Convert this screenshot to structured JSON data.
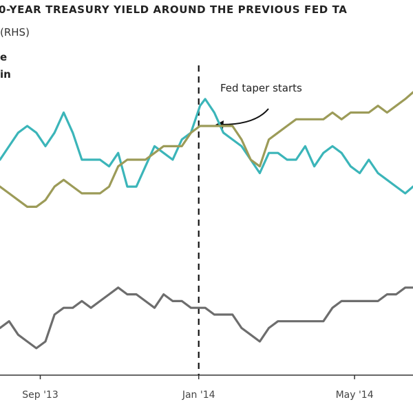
{
  "chart_data": {
    "type": "line",
    "title": "0-YEAR TREASURY YIELD AROUND THE PREVIOUS FED TA",
    "legend_fragments": [
      "(RHS)",
      "e",
      "in"
    ],
    "x_ticks": [
      "Sep '13",
      "Jan '14",
      "May '14"
    ],
    "annotation": "Fed taper starts",
    "event_date": "2014-01-01",
    "x_range": [
      "2013-08-01",
      "2014-06-15"
    ],
    "grid": false,
    "series": [
      {
        "color": "#3bb5b9",
        "points": [
          [
            "2013-08-01",
            0.62
          ],
          [
            "2013-08-08",
            0.64
          ],
          [
            "2013-08-15",
            0.66
          ],
          [
            "2013-08-22",
            0.67
          ],
          [
            "2013-08-29",
            0.66
          ],
          [
            "2013-09-05",
            0.64
          ],
          [
            "2013-09-12",
            0.66
          ],
          [
            "2013-09-19",
            0.69
          ],
          [
            "2013-09-26",
            0.66
          ],
          [
            "2013-10-03",
            0.62
          ],
          [
            "2013-10-10",
            0.62
          ],
          [
            "2013-10-17",
            0.62
          ],
          [
            "2013-10-24",
            0.61
          ],
          [
            "2013-10-31",
            0.63
          ],
          [
            "2013-11-07",
            0.58
          ],
          [
            "2013-11-14",
            0.58
          ],
          [
            "2013-11-21",
            0.61
          ],
          [
            "2013-11-28",
            0.64
          ],
          [
            "2013-12-05",
            0.63
          ],
          [
            "2013-12-12",
            0.62
          ],
          [
            "2013-12-19",
            0.65
          ],
          [
            "2013-12-26",
            0.66
          ],
          [
            "2014-01-02",
            0.7
          ],
          [
            "2014-01-06",
            0.71
          ],
          [
            "2014-01-13",
            0.69
          ],
          [
            "2014-01-20",
            0.66
          ],
          [
            "2014-01-27",
            0.65
          ],
          [
            "2014-02-03",
            0.64
          ],
          [
            "2014-02-10",
            0.62
          ],
          [
            "2014-02-17",
            0.6
          ],
          [
            "2014-02-24",
            0.63
          ],
          [
            "2014-03-03",
            0.63
          ],
          [
            "2014-03-10",
            0.62
          ],
          [
            "2014-03-17",
            0.62
          ],
          [
            "2014-03-24",
            0.64
          ],
          [
            "2014-03-31",
            0.61
          ],
          [
            "2014-04-07",
            0.63
          ],
          [
            "2014-04-14",
            0.64
          ],
          [
            "2014-04-21",
            0.63
          ],
          [
            "2014-04-28",
            0.61
          ],
          [
            "2014-05-05",
            0.6
          ],
          [
            "2014-05-12",
            0.62
          ],
          [
            "2014-05-19",
            0.6
          ],
          [
            "2014-05-26",
            0.59
          ],
          [
            "2014-06-02",
            0.58
          ],
          [
            "2014-06-09",
            0.57
          ],
          [
            "2014-06-15",
            0.58
          ]
        ]
      },
      {
        "color": "#9c9b58",
        "points": [
          [
            "2013-08-01",
            0.58
          ],
          [
            "2013-08-08",
            0.57
          ],
          [
            "2013-08-15",
            0.56
          ],
          [
            "2013-08-22",
            0.55
          ],
          [
            "2013-08-29",
            0.55
          ],
          [
            "2013-09-05",
            0.56
          ],
          [
            "2013-09-12",
            0.58
          ],
          [
            "2013-09-19",
            0.59
          ],
          [
            "2013-09-26",
            0.58
          ],
          [
            "2013-10-03",
            0.57
          ],
          [
            "2013-10-10",
            0.57
          ],
          [
            "2013-10-17",
            0.57
          ],
          [
            "2013-10-24",
            0.58
          ],
          [
            "2013-10-31",
            0.61
          ],
          [
            "2013-11-07",
            0.62
          ],
          [
            "2013-11-14",
            0.62
          ],
          [
            "2013-11-21",
            0.62
          ],
          [
            "2013-11-28",
            0.63
          ],
          [
            "2013-12-05",
            0.64
          ],
          [
            "2013-12-12",
            0.64
          ],
          [
            "2013-12-19",
            0.64
          ],
          [
            "2013-12-26",
            0.66
          ],
          [
            "2014-01-02",
            0.67
          ],
          [
            "2014-01-06",
            0.67
          ],
          [
            "2014-01-13",
            0.67
          ],
          [
            "2014-01-20",
            0.67
          ],
          [
            "2014-01-27",
            0.67
          ],
          [
            "2014-02-03",
            0.65
          ],
          [
            "2014-02-10",
            0.62
          ],
          [
            "2014-02-17",
            0.61
          ],
          [
            "2014-02-24",
            0.65
          ],
          [
            "2014-03-03",
            0.66
          ],
          [
            "2014-03-10",
            0.67
          ],
          [
            "2014-03-17",
            0.68
          ],
          [
            "2014-03-24",
            0.68
          ],
          [
            "2014-03-31",
            0.68
          ],
          [
            "2014-04-07",
            0.68
          ],
          [
            "2014-04-14",
            0.69
          ],
          [
            "2014-04-21",
            0.68
          ],
          [
            "2014-04-28",
            0.69
          ],
          [
            "2014-05-05",
            0.69
          ],
          [
            "2014-05-12",
            0.69
          ],
          [
            "2014-05-19",
            0.7
          ],
          [
            "2014-05-26",
            0.69
          ],
          [
            "2014-06-02",
            0.7
          ],
          [
            "2014-06-09",
            0.71
          ],
          [
            "2014-06-15",
            0.72
          ]
        ]
      },
      {
        "color": "#6d6d6d",
        "points": [
          [
            "2013-08-01",
            0.37
          ],
          [
            "2013-08-08",
            0.38
          ],
          [
            "2013-08-15",
            0.36
          ],
          [
            "2013-08-22",
            0.35
          ],
          [
            "2013-08-29",
            0.34
          ],
          [
            "2013-09-05",
            0.35
          ],
          [
            "2013-09-12",
            0.39
          ],
          [
            "2013-09-19",
            0.4
          ],
          [
            "2013-09-26",
            0.4
          ],
          [
            "2013-10-03",
            0.41
          ],
          [
            "2013-10-10",
            0.4
          ],
          [
            "2013-10-17",
            0.41
          ],
          [
            "2013-10-24",
            0.42
          ],
          [
            "2013-10-31",
            0.43
          ],
          [
            "2013-11-07",
            0.42
          ],
          [
            "2013-11-14",
            0.42
          ],
          [
            "2013-11-21",
            0.41
          ],
          [
            "2013-11-28",
            0.4
          ],
          [
            "2013-12-05",
            0.42
          ],
          [
            "2013-12-12",
            0.41
          ],
          [
            "2013-12-19",
            0.41
          ],
          [
            "2013-12-26",
            0.4
          ],
          [
            "2014-01-02",
            0.4
          ],
          [
            "2014-01-06",
            0.4
          ],
          [
            "2014-01-13",
            0.39
          ],
          [
            "2014-01-20",
            0.39
          ],
          [
            "2014-01-27",
            0.39
          ],
          [
            "2014-02-03",
            0.37
          ],
          [
            "2014-02-10",
            0.36
          ],
          [
            "2014-02-17",
            0.35
          ],
          [
            "2014-02-24",
            0.37
          ],
          [
            "2014-03-03",
            0.38
          ],
          [
            "2014-03-10",
            0.38
          ],
          [
            "2014-03-17",
            0.38
          ],
          [
            "2014-03-24",
            0.38
          ],
          [
            "2014-03-31",
            0.38
          ],
          [
            "2014-04-07",
            0.38
          ],
          [
            "2014-04-14",
            0.4
          ],
          [
            "2014-04-21",
            0.41
          ],
          [
            "2014-04-28",
            0.41
          ],
          [
            "2014-05-05",
            0.41
          ],
          [
            "2014-05-12",
            0.41
          ],
          [
            "2014-05-19",
            0.41
          ],
          [
            "2014-05-26",
            0.42
          ],
          [
            "2014-06-02",
            0.42
          ],
          [
            "2014-06-09",
            0.43
          ],
          [
            "2014-06-15",
            0.43
          ]
        ]
      }
    ]
  }
}
